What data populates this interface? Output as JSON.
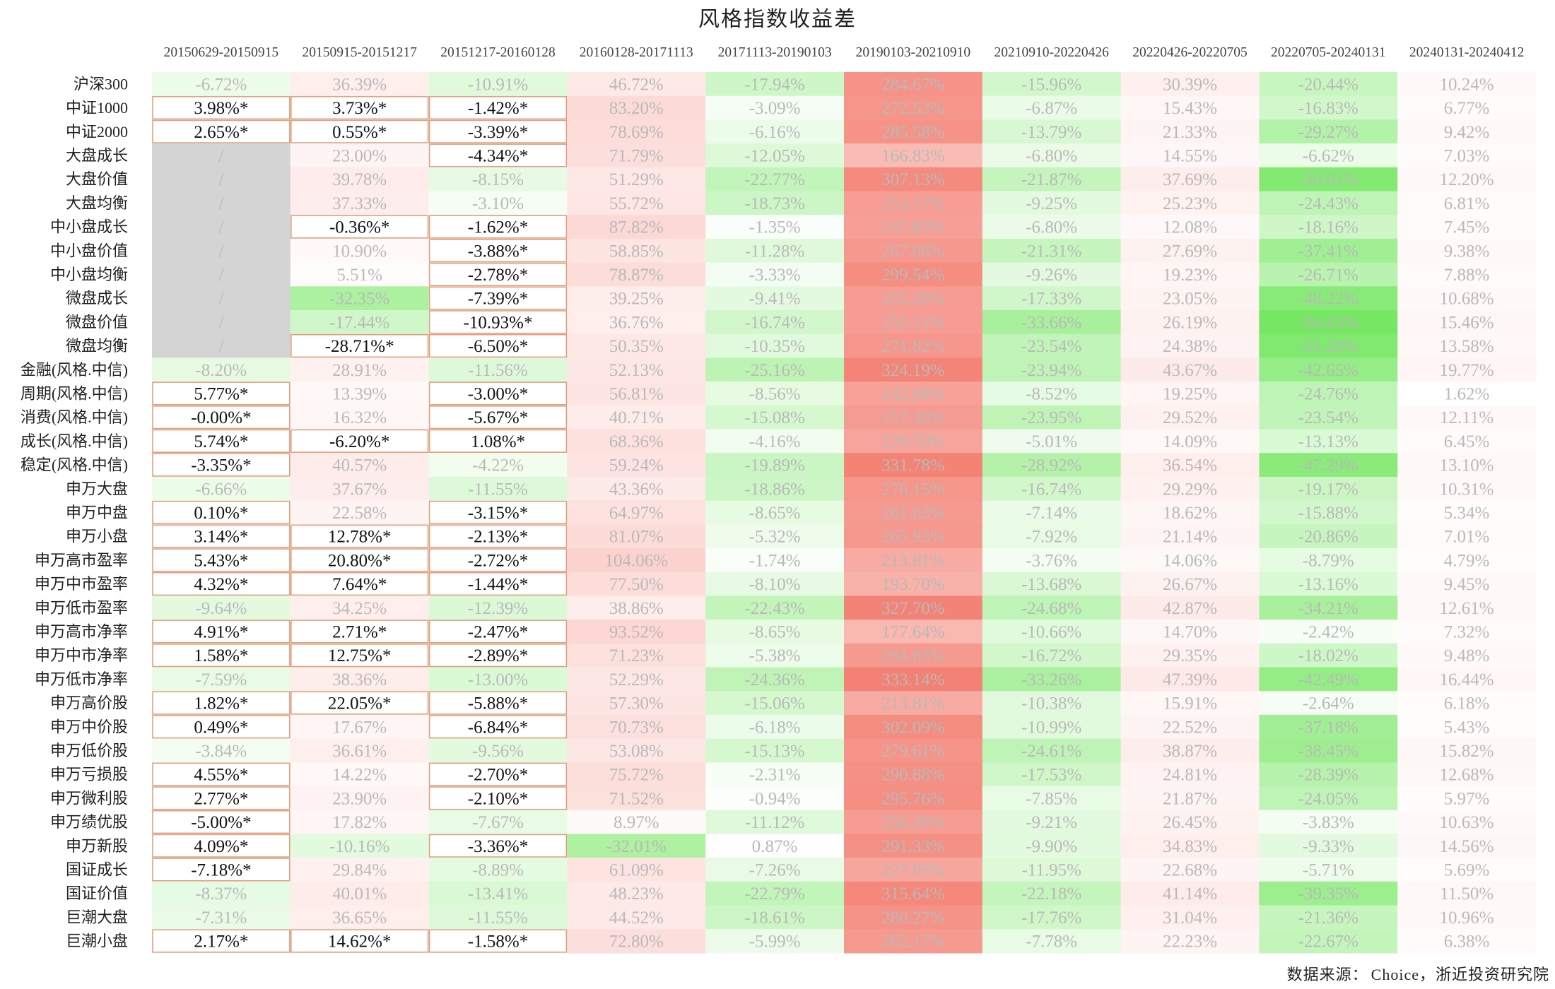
{
  "chart_data": {
    "type": "heatmap",
    "title": "风格指数收益差",
    "columns": [
      "20150629-20150915",
      "20150915-20151217",
      "20151217-20160128",
      "20160128-20171113",
      "20171113-20190103",
      "20190103-20210910",
      "20210910-20220426",
      "20220426-20220705",
      "20220705-20240131",
      "20240131-20240412"
    ],
    "rows": [
      "沪深300",
      "中证1000",
      "中证2000",
      "大盘成长",
      "大盘价值",
      "大盘均衡",
      "中小盘成长",
      "中小盘价值",
      "中小盘均衡",
      "微盘成长",
      "微盘价值",
      "微盘均衡",
      "金融(风格.中信)",
      "周期(风格.中信)",
      "消费(风格.中信)",
      "成长(风格.中信)",
      "稳定(风格.中信)",
      "申万大盘",
      "申万中盘",
      "申万小盘",
      "申万高市盈率",
      "申万中市盈率",
      "申万低市盈率",
      "申万高市净率",
      "申万中市净率",
      "申万低市净率",
      "申万高价股",
      "申万中价股",
      "申万低价股",
      "申万亏损股",
      "申万微利股",
      "申万绩优股",
      "申万新股",
      "国证成长",
      "国证价值",
      "巨潮大盘",
      "巨潮小盘"
    ],
    "values": [
      [
        "-6.72%",
        "36.39%",
        "-10.91%",
        "46.72%",
        "-17.94%",
        "284.67%",
        "-15.96%",
        "30.39%",
        "-20.44%",
        "10.24%"
      ],
      [
        "3.98%*",
        "3.73%*",
        "-1.42%*",
        "83.20%",
        "-3.09%",
        "272.53%",
        "-6.87%",
        "15.43%",
        "-16.83%",
        "6.77%"
      ],
      [
        "2.65%*",
        "0.55%*",
        "-3.39%*",
        "78.69%",
        "-6.16%",
        "285.58%",
        "-13.79%",
        "21.33%",
        "-29.27%",
        "9.42%"
      ],
      [
        "/",
        "23.00%",
        "-4.34%*",
        "71.79%",
        "-12.05%",
        "166.83%",
        "-6.80%",
        "14.55%",
        "-6.62%",
        "7.03%"
      ],
      [
        "/",
        "39.78%",
        "-8.15%",
        "51.29%",
        "-22.77%",
        "307.13%",
        "-21.87%",
        "37.69%",
        "-50.61%",
        "12.20%"
      ],
      [
        "/",
        "37.33%",
        "-3.10%",
        "55.72%",
        "-18.73%",
        "253.17%",
        "-9.25%",
        "25.23%",
        "-24.43%",
        "6.81%"
      ],
      [
        "/",
        "-0.36%*",
        "-1.62%*",
        "87.82%",
        "-1.35%",
        "247.83%",
        "-6.80%",
        "12.08%",
        "-18.16%",
        "7.45%"
      ],
      [
        "/",
        "10.90%",
        "-3.88%*",
        "58.85%",
        "-11.28%",
        "267.08%",
        "-21.31%",
        "27.69%",
        "-37.41%",
        "9.38%"
      ],
      [
        "/",
        "5.51%",
        "-2.78%*",
        "78.87%",
        "-3.33%",
        "299.54%",
        "-9.26%",
        "19.23%",
        "-26.71%",
        "7.88%"
      ],
      [
        "/",
        "-32.35%",
        "-7.39%*",
        "39.25%",
        "-9.41%",
        "255.26%",
        "-17.33%",
        "23.05%",
        "-48.22%",
        "10.68%"
      ],
      [
        "/",
        "-17.44%",
        "-10.93%*",
        "36.76%",
        "-16.74%",
        "255.11%",
        "-33.66%",
        "26.19%",
        "-56.63%",
        "15.46%"
      ],
      [
        "/",
        "-28.71%*",
        "-6.50%*",
        "50.35%",
        "-10.35%",
        "271.82%",
        "-23.54%",
        "24.38%",
        "-51.20%",
        "13.58%"
      ],
      [
        "-8.20%",
        "28.91%",
        "-11.56%",
        "52.13%",
        "-25.16%",
        "324.19%",
        "-23.94%",
        "43.67%",
        "-42.65%",
        "19.77%"
      ],
      [
        "5.77%*",
        "13.39%",
        "-3.00%*",
        "56.81%",
        "-8.56%",
        "242.08%",
        "-8.52%",
        "19.25%",
        "-24.76%",
        "1.62%"
      ],
      [
        "-0.00%*",
        "16.32%",
        "-5.67%*",
        "40.71%",
        "-15.08%",
        "257.30%",
        "-23.95%",
        "29.52%",
        "-23.54%",
        "12.11%"
      ],
      [
        "5.74%*",
        "-6.20%*",
        "1.08%*",
        "68.36%",
        "-4.16%",
        "229.70%",
        "-5.01%",
        "14.09%",
        "-13.13%",
        "6.45%"
      ],
      [
        "-3.35%*",
        "40.57%",
        "-4.22%",
        "59.24%",
        "-19.89%",
        "331.78%",
        "-28.92%",
        "36.54%",
        "-47.29%",
        "13.10%"
      ],
      [
        "-6.66%",
        "37.67%",
        "-11.55%",
        "43.36%",
        "-18.86%",
        "276.15%",
        "-16.74%",
        "29.29%",
        "-19.17%",
        "10.31%"
      ],
      [
        "0.10%*",
        "22.58%",
        "-3.15%*",
        "64.97%",
        "-8.65%",
        "261.03%",
        "-7.14%",
        "18.62%",
        "-15.88%",
        "5.34%"
      ],
      [
        "3.14%*",
        "12.78%*",
        "-2.13%*",
        "81.07%",
        "-5.32%",
        "265.93%",
        "-7.92%",
        "21.14%",
        "-20.86%",
        "7.01%"
      ],
      [
        "5.43%*",
        "20.80%*",
        "-2.72%*",
        "104.06%",
        "-1.74%",
        "213.81%",
        "-3.76%",
        "14.06%",
        "-8.79%",
        "4.79%"
      ],
      [
        "4.32%*",
        "7.64%*",
        "-1.44%*",
        "77.50%",
        "-8.10%",
        "193.70%",
        "-13.68%",
        "26.67%",
        "-13.16%",
        "9.45%"
      ],
      [
        "-9.64%",
        "34.25%",
        "-12.39%",
        "38.86%",
        "-22.43%",
        "327.70%",
        "-24.68%",
        "42.87%",
        "-34.21%",
        "12.61%"
      ],
      [
        "4.91%*",
        "2.71%*",
        "-2.47%*",
        "93.52%",
        "-8.65%",
        "177.64%",
        "-10.66%",
        "14.70%",
        "-2.42%",
        "7.32%"
      ],
      [
        "1.58%*",
        "12.75%*",
        "-2.89%*",
        "71.23%",
        "-5.38%",
        "264.83%",
        "-16.72%",
        "29.35%",
        "-18.02%",
        "9.48%"
      ],
      [
        "-7.59%",
        "38.36%",
        "-13.00%",
        "52.29%",
        "-24.36%",
        "333.14%",
        "-33.26%",
        "47.39%",
        "-42.49%",
        "16.44%"
      ],
      [
        "1.82%*",
        "22.05%*",
        "-5.88%*",
        "57.30%",
        "-15.06%",
        "213.81%",
        "-10.38%",
        "15.91%",
        "-2.64%",
        "6.18%"
      ],
      [
        "0.49%*",
        "17.67%",
        "-6.84%*",
        "70.73%",
        "-6.18%",
        "302.09%",
        "-10.99%",
        "22.52%",
        "-37.18%",
        "5.43%"
      ],
      [
        "-3.84%",
        "36.61%",
        "-9.56%",
        "53.08%",
        "-15.13%",
        "279.61%",
        "-24.61%",
        "38.87%",
        "-38.45%",
        "15.82%"
      ],
      [
        "4.55%*",
        "14.22%",
        "-2.70%*",
        "75.72%",
        "-2.31%",
        "290.88%",
        "-17.53%",
        "24.81%",
        "-28.39%",
        "12.68%"
      ],
      [
        "2.77%*",
        "23.90%",
        "-2.10%*",
        "71.52%",
        "-0.94%",
        "295.76%",
        "-7.85%",
        "21.87%",
        "-24.05%",
        "5.97%"
      ],
      [
        "-5.00%*",
        "17.82%",
        "-7.67%",
        "8.97%",
        "-11.12%",
        "256.39%",
        "-9.21%",
        "26.45%",
        "-3.83%",
        "10.63%"
      ],
      [
        "4.09%*",
        "-10.16%",
        "-3.36%*",
        "-32.01%",
        "0.87%",
        "291.33%",
        "-9.90%",
        "34.83%",
        "-9.33%",
        "14.56%"
      ],
      [
        "-7.18%*",
        "29.84%",
        "-8.89%",
        "61.09%",
        "-7.26%",
        "227.95%",
        "-11.95%",
        "22.68%",
        "-5.71%",
        "5.69%"
      ],
      [
        "-8.37%",
        "40.01%",
        "-13.41%",
        "48.23%",
        "-22.79%",
        "315.64%",
        "-22.18%",
        "41.14%",
        "-39.35%",
        "11.50%"
      ],
      [
        "-7.31%",
        "36.65%",
        "-11.55%",
        "44.52%",
        "-18.61%",
        "280.27%",
        "-17.76%",
        "31.04%",
        "-21.36%",
        "10.96%"
      ],
      [
        "2.17%*",
        "14.62%*",
        "-1.58%*",
        "72.80%",
        "-5.99%",
        "262.17%",
        "-7.78%",
        "22.23%",
        "-22.67%",
        "6.38%"
      ]
    ],
    "colors": {
      "positive": "#f47f72",
      "negative": "#6ee65a",
      "missing": "#d4d4d4",
      "highlight_border": "#e0a07e",
      "faded_text": "#b9b9b9",
      "highlight_text": "#111111"
    }
  },
  "source": {
    "label": "数据来源：",
    "text": "Choice，浙近投资研究院"
  }
}
